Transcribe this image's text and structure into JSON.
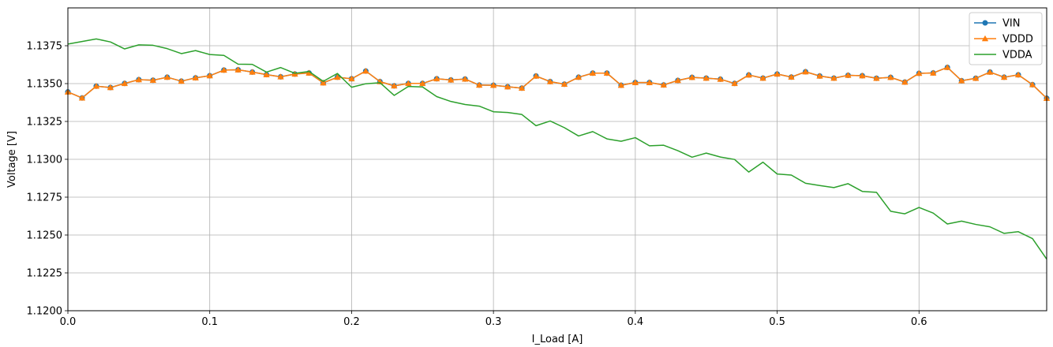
{
  "chart_data": {
    "type": "line",
    "title": "",
    "xlabel": "I_Load [A]",
    "ylabel": "Voltage [V]",
    "xlim": [
      0,
      0.69
    ],
    "ylim": [
      1.12,
      1.14
    ],
    "xticks": [
      0.0,
      0.1,
      0.2,
      0.3,
      0.4,
      0.5,
      0.6
    ],
    "xtick_labels": [
      "0.0",
      "0.1",
      "0.2",
      "0.3",
      "0.4",
      "0.5",
      "0.6"
    ],
    "yticks": [
      1.12,
      1.1225,
      1.125,
      1.1275,
      1.13,
      1.1325,
      1.135,
      1.1375
    ],
    "ytick_labels": [
      "1.1200",
      "1.1225",
      "1.1250",
      "1.1275",
      "1.1300",
      "1.1325",
      "1.1350",
      "1.1375"
    ],
    "grid": true,
    "legend_position": "top-right",
    "x": [
      0.0,
      0.01,
      0.02,
      0.03,
      0.04,
      0.05,
      0.06,
      0.07,
      0.08,
      0.09,
      0.1,
      0.11,
      0.12,
      0.13,
      0.14,
      0.15,
      0.16,
      0.17,
      0.18,
      0.19,
      0.2,
      0.21,
      0.22,
      0.23,
      0.24,
      0.25,
      0.26,
      0.27,
      0.28,
      0.29,
      0.3,
      0.31,
      0.32,
      0.33,
      0.34,
      0.35,
      0.36,
      0.37,
      0.38,
      0.39,
      0.4,
      0.41,
      0.42,
      0.43,
      0.44,
      0.45,
      0.46,
      0.47,
      0.48,
      0.49,
      0.5,
      0.51,
      0.52,
      0.53,
      0.54,
      0.55,
      0.56,
      0.57,
      0.58,
      0.59,
      0.6,
      0.61,
      0.62,
      0.63,
      0.64,
      0.65,
      0.66,
      0.67,
      0.68,
      0.69
    ],
    "series": [
      {
        "name": "VIN",
        "color": "#1f77b4",
        "marker": "circle",
        "values": [
          1.13445,
          1.13405,
          1.13483,
          1.13474,
          1.13501,
          1.13526,
          1.13522,
          1.13542,
          1.13516,
          1.13538,
          1.13552,
          1.13589,
          1.13591,
          1.13576,
          1.13559,
          1.13545,
          1.13563,
          1.1357,
          1.13505,
          1.13542,
          1.13532,
          1.13583,
          1.13513,
          1.13485,
          1.13501,
          1.13501,
          1.13532,
          1.13524,
          1.1353,
          1.1349,
          1.13489,
          1.13479,
          1.1347,
          1.1355,
          1.13513,
          1.13496,
          1.13542,
          1.13569,
          1.13569,
          1.13489,
          1.13507,
          1.13507,
          1.13491,
          1.13521,
          1.13541,
          1.13536,
          1.13529,
          1.13501,
          1.13557,
          1.13536,
          1.13563,
          1.13543,
          1.13578,
          1.1355,
          1.13536,
          1.13555,
          1.13552,
          1.13535,
          1.13541,
          1.1351,
          1.13568,
          1.1357,
          1.13607,
          1.13519,
          1.13535,
          1.13576,
          1.13542,
          1.13558,
          1.13493,
          1.13403
        ]
      },
      {
        "name": "VDDD",
        "color": "#ff7f0e",
        "marker": "triangle",
        "values": [
          1.13445,
          1.13405,
          1.13483,
          1.13474,
          1.13501,
          1.13526,
          1.13522,
          1.13542,
          1.13516,
          1.13538,
          1.13552,
          1.13589,
          1.13591,
          1.13576,
          1.13559,
          1.13545,
          1.13563,
          1.1357,
          1.13505,
          1.13542,
          1.13532,
          1.13583,
          1.13513,
          1.13485,
          1.13501,
          1.13501,
          1.13532,
          1.13524,
          1.1353,
          1.1349,
          1.13489,
          1.13479,
          1.1347,
          1.1355,
          1.13513,
          1.13496,
          1.13542,
          1.13569,
          1.13569,
          1.13489,
          1.13507,
          1.13507,
          1.13491,
          1.13521,
          1.13541,
          1.13536,
          1.13529,
          1.13501,
          1.13557,
          1.13536,
          1.13563,
          1.13543,
          1.13578,
          1.1355,
          1.13536,
          1.13555,
          1.13552,
          1.13535,
          1.13541,
          1.1351,
          1.13568,
          1.1357,
          1.13607,
          1.13519,
          1.13535,
          1.13576,
          1.13542,
          1.13558,
          1.13493,
          1.13403
        ]
      },
      {
        "name": "VDDA",
        "color": "#2ca02c",
        "marker": "none",
        "values": [
          1.13761,
          1.13778,
          1.13795,
          1.13775,
          1.13729,
          1.13756,
          1.13753,
          1.13731,
          1.13698,
          1.13718,
          1.13692,
          1.13686,
          1.13628,
          1.13627,
          1.13576,
          1.13606,
          1.13568,
          1.1358,
          1.13515,
          1.13567,
          1.13476,
          1.13499,
          1.13506,
          1.13422,
          1.13481,
          1.13478,
          1.13414,
          1.13382,
          1.13362,
          1.13351,
          1.13314,
          1.13309,
          1.13296,
          1.13222,
          1.13253,
          1.13209,
          1.13154,
          1.13183,
          1.13135,
          1.13119,
          1.13143,
          1.13089,
          1.13093,
          1.13057,
          1.13014,
          1.13041,
          1.13015,
          1.12999,
          1.12916,
          1.12981,
          1.12903,
          1.12896,
          1.12842,
          1.12827,
          1.12813,
          1.12839,
          1.12788,
          1.12782,
          1.12657,
          1.1264,
          1.12682,
          1.12645,
          1.12573,
          1.12592,
          1.1257,
          1.12554,
          1.12511,
          1.12522,
          1.12476,
          1.12341
        ]
      }
    ]
  }
}
